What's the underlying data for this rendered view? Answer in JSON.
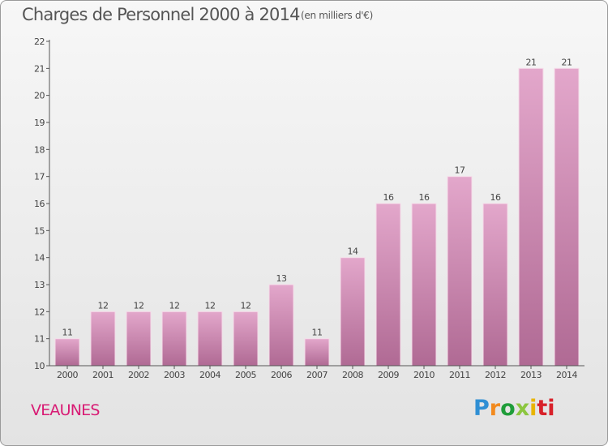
{
  "header": {
    "title": "Charges de Personnel 2000 à 2014",
    "subtitle": "(en milliers d'€)"
  },
  "footer": {
    "commune": "VEAUNES",
    "logo_text": "Proxiti",
    "logo_letters": [
      "P",
      "r",
      "o",
      "x",
      "i",
      "ti"
    ]
  },
  "colors": {
    "bar_top": "#e3a7cb",
    "bar_bottom": "#b06a94",
    "commune_text": "#d81b74"
  },
  "chart_data": {
    "type": "bar",
    "categories": [
      "2000",
      "2001",
      "2002",
      "2003",
      "2004",
      "2005",
      "2006",
      "2007",
      "2008",
      "2009",
      "2010",
      "2011",
      "2012",
      "2013",
      "2014"
    ],
    "values": [
      11,
      12,
      12,
      12,
      12,
      12,
      13,
      11,
      14,
      16,
      16,
      17,
      16,
      21,
      21
    ],
    "data_labels": [
      "11",
      "12",
      "12",
      "12",
      "12",
      "12",
      "13",
      "11",
      "14",
      "16",
      "16",
      "17",
      "16",
      "21",
      "21"
    ],
    "ylim": [
      10,
      22
    ],
    "yticks": [
      10,
      11,
      12,
      13,
      14,
      15,
      16,
      17,
      18,
      19,
      20,
      21,
      22
    ],
    "xlabel": "",
    "ylabel": "",
    "grid": false,
    "legend": "none"
  }
}
